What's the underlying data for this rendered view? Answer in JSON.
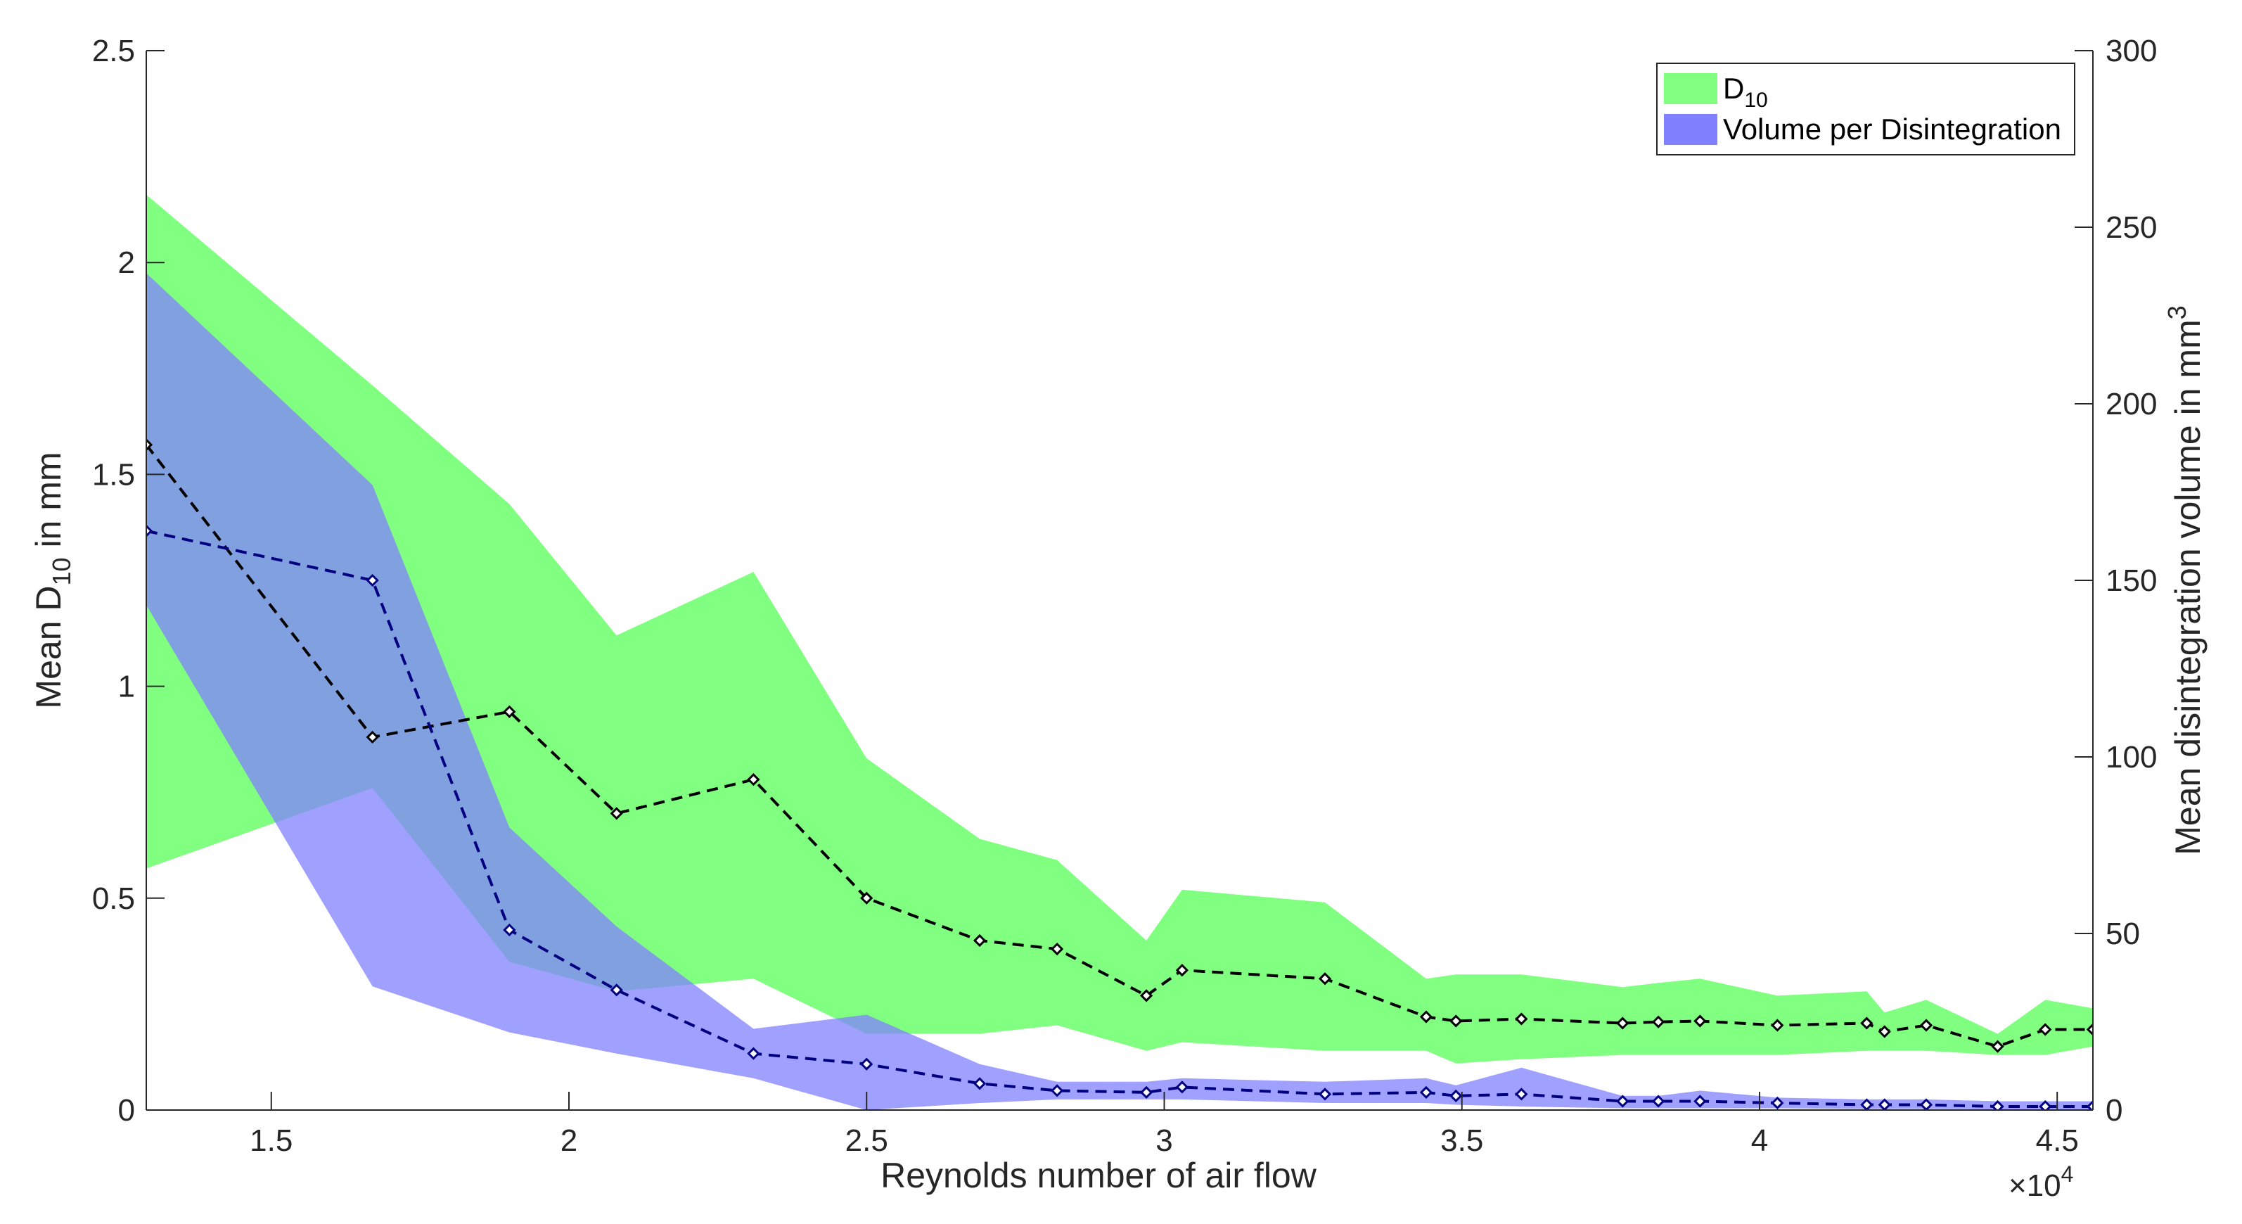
{
  "chart_data": {
    "type": "area",
    "x_multiplier_label": "×10",
    "x_multiplier_exponent": "4",
    "xlabel": "Reynolds number of air flow",
    "ylabel_left": {
      "prefix": "Mean D",
      "sub": "10",
      "suffix": " in mm"
    },
    "ylabel_right": {
      "prefix": "Mean disintegration volume in mm",
      "sup": "3"
    },
    "xlim": [
      1.29,
      4.56
    ],
    "ylim_left": [
      0,
      2.5
    ],
    "ylim_right": [
      0,
      300
    ],
    "x_ticks": [
      1.5,
      2,
      2.5,
      3,
      3.5,
      4,
      4.5
    ],
    "x_tick_labels": [
      "1.5",
      "2",
      "2.5",
      "3",
      "3.5",
      "4",
      "4.5"
    ],
    "y_left_ticks": [
      0,
      0.5,
      1,
      1.5,
      2,
      2.5
    ],
    "y_left_tick_labels": [
      "0",
      "0.5",
      "1",
      "1.5",
      "2",
      "2.5"
    ],
    "y_right_ticks": [
      0,
      50,
      100,
      150,
      200,
      250,
      300
    ],
    "y_right_tick_labels": [
      "0",
      "50",
      "100",
      "150",
      "200",
      "250",
      "300"
    ],
    "legend": {
      "position": "top-right",
      "entries": [
        {
          "label": "D",
          "sub": "10",
          "color": "#80ff80"
        },
        {
          "label": "Volume per Disintegration",
          "color": "#8080ff"
        }
      ]
    },
    "series": [
      {
        "name": "D10",
        "axis": "left",
        "color": "#80ff80",
        "line_color": "#000000",
        "x": [
          1.29,
          1.67,
          1.9,
          2.08,
          2.31,
          2.5,
          2.69,
          2.82,
          2.97,
          3.03,
          3.27,
          3.44,
          3.49,
          3.6,
          3.77,
          3.83,
          3.9,
          4.03,
          4.18,
          4.21,
          4.28,
          4.4,
          4.48,
          4.56
        ],
        "mean": [
          1.57,
          0.88,
          0.94,
          0.7,
          0.78,
          0.5,
          0.4,
          0.38,
          0.27,
          0.33,
          0.31,
          0.22,
          0.21,
          0.215,
          0.205,
          0.208,
          0.21,
          0.2,
          0.205,
          0.185,
          0.2,
          0.15,
          0.19,
          0.19
        ],
        "upper": [
          2.16,
          1.71,
          1.43,
          1.12,
          1.27,
          0.83,
          0.64,
          0.59,
          0.4,
          0.52,
          0.49,
          0.31,
          0.32,
          0.32,
          0.29,
          0.3,
          0.31,
          0.27,
          0.28,
          0.23,
          0.26,
          0.18,
          0.26,
          0.24
        ],
        "lower": [
          0.57,
          0.76,
          0.35,
          0.28,
          0.31,
          0.18,
          0.18,
          0.2,
          0.14,
          0.16,
          0.14,
          0.14,
          0.11,
          0.12,
          0.13,
          0.13,
          0.13,
          0.13,
          0.14,
          0.14,
          0.14,
          0.13,
          0.13,
          0.15
        ]
      },
      {
        "name": "Volume per Disintegration",
        "axis": "right",
        "color": "#8080ff",
        "line_color": "#000080",
        "x": [
          1.29,
          1.67,
          1.9,
          2.08,
          2.31,
          2.5,
          2.69,
          2.82,
          2.97,
          3.03,
          3.27,
          3.44,
          3.49,
          3.6,
          3.77,
          3.83,
          3.9,
          4.03,
          4.18,
          4.21,
          4.28,
          4.4,
          4.48,
          4.56
        ],
        "mean": [
          164,
          150,
          51,
          34,
          16,
          13,
          7.5,
          5.5,
          5,
          6.5,
          4.5,
          5,
          4,
          4.5,
          2.5,
          2.5,
          2.5,
          2,
          1.5,
          1.5,
          1.5,
          1,
          1,
          1
        ],
        "upper": [
          237,
          177,
          80,
          52,
          23,
          27,
          13,
          8,
          8,
          9,
          8,
          9,
          7,
          12,
          4,
          4,
          5.5,
          3.5,
          3,
          3,
          3,
          2.5,
          2.5,
          2.5
        ],
        "lower": [
          143,
          35,
          22,
          16,
          9,
          0,
          2,
          3,
          3,
          3,
          2,
          2,
          1.5,
          1,
          0.5,
          0.5,
          0.5,
          0.5,
          0.3,
          0.3,
          0.3,
          0.2,
          0.2,
          0.2
        ]
      }
    ]
  }
}
